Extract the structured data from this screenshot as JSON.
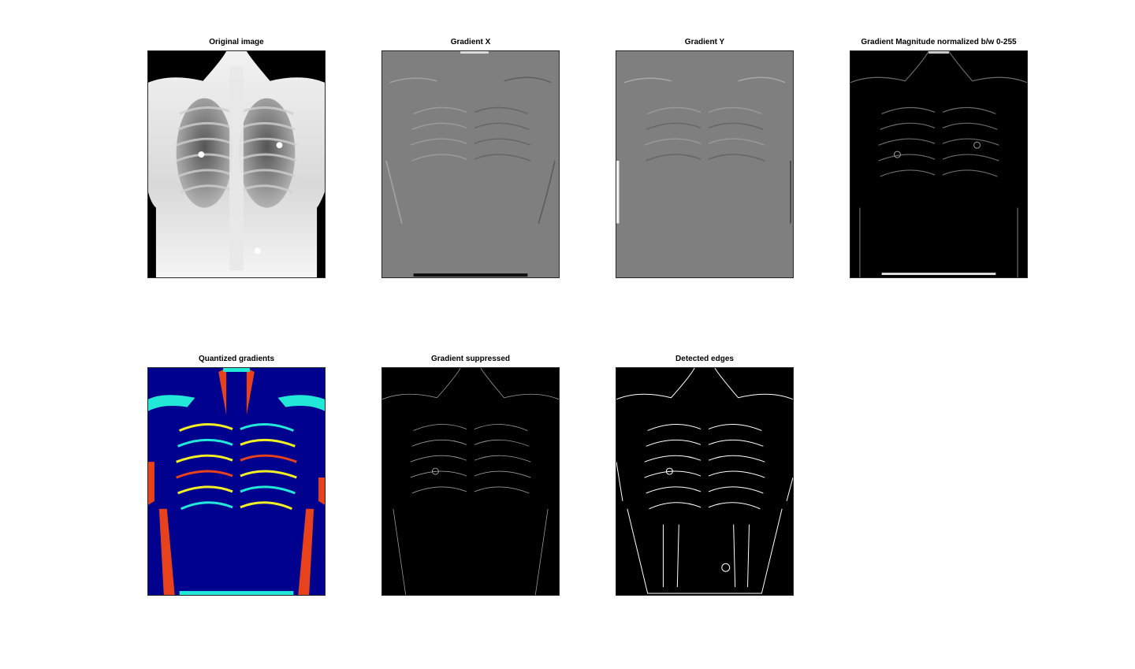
{
  "figure": {
    "panels": [
      {
        "id": "original",
        "title": "Original image",
        "style": "xray"
      },
      {
        "id": "gradx",
        "title": "Gradient X",
        "style": "emboss-x"
      },
      {
        "id": "grady",
        "title": "Gradient Y",
        "style": "emboss-y"
      },
      {
        "id": "gradmag",
        "title": "Gradient Magnitude normalized b/w 0-255",
        "style": "magnitude"
      },
      {
        "id": "quantized",
        "title": "Quantized gradients",
        "style": "jet-quantized"
      },
      {
        "id": "suppressed",
        "title": "Gradient suppressed",
        "style": "thin-edges"
      },
      {
        "id": "edges",
        "title": "Detected edges",
        "style": "binary-edges"
      }
    ],
    "colors": {
      "background": "#ffffff",
      "axes_border": "#262626",
      "jet_blue": "#00008f",
      "jet_cyan": "#22e8d8",
      "jet_yellow": "#f2f024",
      "jet_red": "#e8421c",
      "emboss_gray": "#7f7f7f"
    }
  }
}
